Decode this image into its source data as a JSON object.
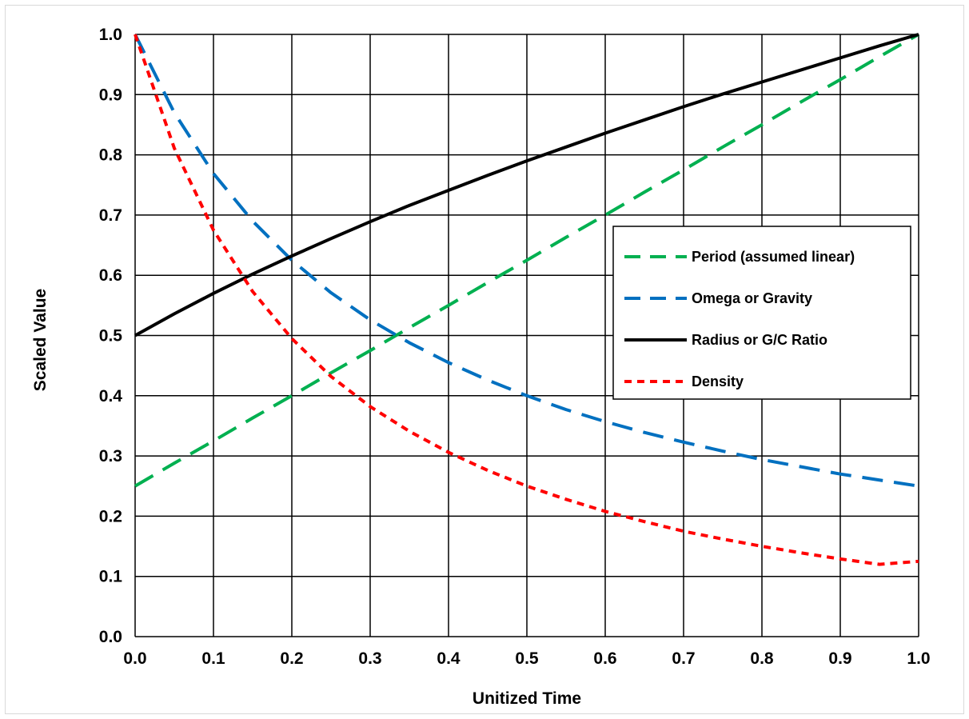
{
  "chart_data": {
    "type": "line",
    "title": "",
    "xlabel": "Unitized Time",
    "ylabel": "Scaled Value",
    "xlim": [
      0,
      1
    ],
    "ylim": [
      0,
      1
    ],
    "grid": true,
    "legend_position": "right-center",
    "x_ticks": [
      "0.0",
      "0.1",
      "0.2",
      "0.3",
      "0.4",
      "0.5",
      "0.6",
      "0.7",
      "0.8",
      "0.9",
      "1.0"
    ],
    "y_ticks": [
      "0.0",
      "0.1",
      "0.2",
      "0.3",
      "0.4",
      "0.5",
      "0.6",
      "0.7",
      "0.8",
      "0.9",
      "1.0"
    ],
    "x": [
      0.0,
      0.05,
      0.1,
      0.15,
      0.2,
      0.25,
      0.3,
      0.35,
      0.4,
      0.45,
      0.5,
      0.55,
      0.6,
      0.65,
      0.7,
      0.75,
      0.8,
      0.85,
      0.9,
      0.95,
      1.0
    ],
    "series": [
      {
        "name": "Period (assumed linear)",
        "color": "#00b050",
        "dash": "long-dash",
        "values": [
          0.25,
          0.288,
          0.325,
          0.363,
          0.4,
          0.438,
          0.475,
          0.513,
          0.55,
          0.588,
          0.625,
          0.663,
          0.7,
          0.738,
          0.775,
          0.813,
          0.85,
          0.888,
          0.925,
          0.963,
          1.0
        ]
      },
      {
        "name": "Omega or Gravity",
        "color": "#0070c0",
        "dash": "long-dash",
        "values": [
          1.0,
          0.87,
          0.769,
          0.69,
          0.625,
          0.571,
          0.526,
          0.488,
          0.455,
          0.426,
          0.4,
          0.377,
          0.357,
          0.339,
          0.323,
          0.308,
          0.294,
          0.282,
          0.27,
          0.26,
          0.25
        ]
      },
      {
        "name": "Radius or G/C Ratio",
        "color": "#000000",
        "dash": "solid",
        "values": [
          0.5,
          0.536,
          0.57,
          0.602,
          0.632,
          0.661,
          0.689,
          0.716,
          0.741,
          0.766,
          0.79,
          0.813,
          0.836,
          0.858,
          0.88,
          0.901,
          0.921,
          0.941,
          0.961,
          0.981,
          1.0
        ]
      },
      {
        "name": "Density",
        "color": "#ff0000",
        "dash": "short-dash",
        "values": [
          1.0,
          0.811,
          0.675,
          0.573,
          0.495,
          0.432,
          0.382,
          0.341,
          0.306,
          0.276,
          0.25,
          0.228,
          0.208,
          0.191,
          0.175,
          0.162,
          0.15,
          0.139,
          0.129,
          0.12,
          0.125
        ]
      }
    ]
  }
}
